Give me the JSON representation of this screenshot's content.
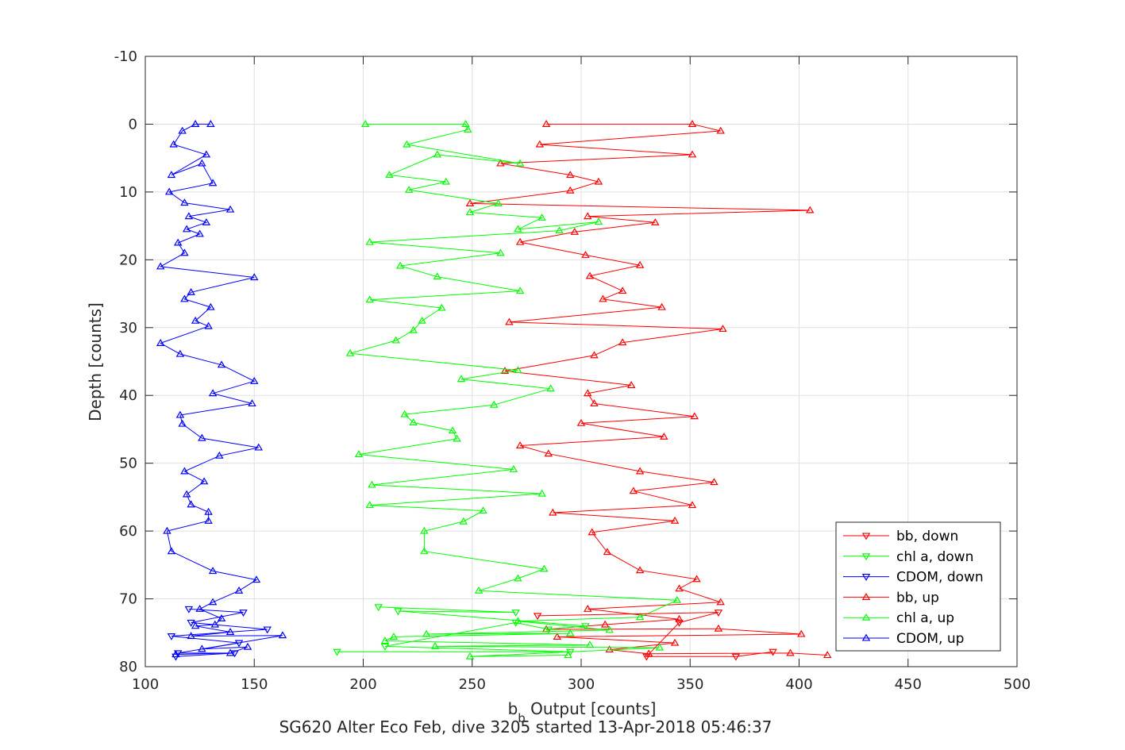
{
  "chart_data": {
    "type": "line",
    "title": "",
    "xlabel_main": "b",
    "xlabel_sub": "b",
    "xlabel_rest": " Output [counts]",
    "ylabel": "Depth [counts]",
    "caption": "SG620 Alter Eco Feb, dive 3205 started 13-Apr-2018 05:46:37",
    "xlim": [
      100,
      500
    ],
    "ylim": [
      -10,
      80
    ],
    "y_reversed": true,
    "grid": true,
    "legend_position": "bottom-right",
    "xticks": [
      100,
      150,
      200,
      250,
      300,
      350,
      400,
      450,
      500
    ],
    "yticks": [
      -10,
      0,
      10,
      20,
      30,
      40,
      50,
      60,
      70,
      80
    ],
    "series": [
      {
        "name": "bb, down",
        "color": "#ff0000",
        "marker": "triangle-down",
        "points": [
          [
            280,
            72.5
          ],
          [
            363,
            72
          ],
          [
            345,
            73.5
          ],
          [
            330,
            78.5
          ],
          [
            371,
            78.5
          ],
          [
            388,
            77.8
          ]
        ]
      },
      {
        "name": "chl a, down",
        "color": "#00ff00",
        "marker": "triangle-down",
        "points": [
          [
            207,
            71.2
          ],
          [
            270,
            72
          ],
          [
            216,
            71.8
          ],
          [
            302,
            74
          ],
          [
            285,
            74.5
          ],
          [
            270,
            73.5
          ],
          [
            210,
            77
          ],
          [
            295,
            77.8
          ],
          [
            188,
            77.8
          ]
        ]
      },
      {
        "name": "CDOM, down",
        "color": "#0000ff",
        "marker": "triangle-down",
        "points": [
          [
            120,
            71.5
          ],
          [
            145,
            72
          ],
          [
            121,
            73.5
          ],
          [
            156,
            74.5
          ],
          [
            112,
            75.5
          ],
          [
            143,
            76.5
          ],
          [
            115,
            78
          ],
          [
            141,
            78
          ],
          [
            114,
            78.5
          ]
        ]
      },
      {
        "name": "bb, up",
        "color": "#ff0000",
        "marker": "triangle-up",
        "points": [
          [
            413,
            78.3
          ],
          [
            396,
            78
          ],
          [
            331,
            78.1
          ],
          [
            313,
            77.5
          ],
          [
            343,
            76.5
          ],
          [
            289,
            75.6
          ],
          [
            401,
            75.2
          ],
          [
            363,
            74.4
          ],
          [
            284,
            74.5
          ],
          [
            311,
            73.8
          ],
          [
            345,
            73
          ],
          [
            303,
            71.5
          ],
          [
            364,
            70.5
          ],
          [
            345,
            68.5
          ],
          [
            353,
            67.1
          ],
          [
            327,
            65.8
          ],
          [
            312,
            63.1
          ],
          [
            305,
            60.2
          ],
          [
            343,
            58.5
          ],
          [
            287,
            57.3
          ],
          [
            351,
            56.2
          ],
          [
            324,
            54.1
          ],
          [
            361,
            52.8
          ],
          [
            327,
            51.2
          ],
          [
            285,
            48.6
          ],
          [
            272,
            47.4
          ],
          [
            338,
            46.1
          ],
          [
            300,
            44.1
          ],
          [
            352,
            43.1
          ],
          [
            306,
            41.2
          ],
          [
            303,
            39.7
          ],
          [
            323,
            38.5
          ],
          [
            265,
            36.4
          ],
          [
            306,
            34.1
          ],
          [
            319,
            32.2
          ],
          [
            365,
            30.2
          ],
          [
            267,
            29.2
          ],
          [
            337,
            27
          ],
          [
            310,
            25.8
          ],
          [
            319,
            24.6
          ],
          [
            304,
            22.4
          ],
          [
            327,
            20.8
          ],
          [
            302,
            19.3
          ],
          [
            272,
            17.4
          ],
          [
            297,
            15.9
          ],
          [
            334,
            14.5
          ],
          [
            303,
            13.6
          ],
          [
            405,
            12.7
          ],
          [
            249,
            11.7
          ],
          [
            295,
            9.8
          ],
          [
            308,
            8.5
          ],
          [
            295,
            7.5
          ],
          [
            263,
            5.8
          ],
          [
            351,
            4.5
          ],
          [
            281,
            3
          ],
          [
            364,
            1
          ],
          [
            351,
            0
          ],
          [
            284,
            0
          ]
        ]
      },
      {
        "name": "chl a, up",
        "color": "#00ff00",
        "marker": "triangle-up",
        "points": [
          [
            294,
            78.3
          ],
          [
            249,
            78.5
          ],
          [
            336,
            77.2
          ],
          [
            233,
            77
          ],
          [
            304,
            76.8
          ],
          [
            210,
            76.2
          ],
          [
            214,
            75.6
          ],
          [
            295,
            75.1
          ],
          [
            229,
            75.2
          ],
          [
            313,
            74.6
          ],
          [
            271,
            73.3
          ],
          [
            327,
            72.7
          ],
          [
            344,
            70.2
          ],
          [
            253,
            68.8
          ],
          [
            271,
            67
          ],
          [
            283,
            65.6
          ],
          [
            228,
            63
          ],
          [
            228,
            60
          ],
          [
            246,
            58.6
          ],
          [
            255,
            57
          ],
          [
            203,
            56.2
          ],
          [
            282,
            54.5
          ],
          [
            204,
            53.2
          ],
          [
            269,
            50.9
          ],
          [
            198,
            48.7
          ],
          [
            243,
            46.4
          ],
          [
            241,
            45.2
          ],
          [
            223,
            44
          ],
          [
            219,
            42.8
          ],
          [
            260,
            41.4
          ],
          [
            286,
            39
          ],
          [
            245,
            37.6
          ],
          [
            271,
            36.3
          ],
          [
            194,
            33.8
          ],
          [
            215,
            31.9
          ],
          [
            223,
            30.4
          ],
          [
            227,
            29
          ],
          [
            236,
            27.1
          ],
          [
            203,
            25.9
          ],
          [
            272,
            24.6
          ],
          [
            234,
            22.5
          ],
          [
            217,
            20.9
          ],
          [
            263,
            19
          ],
          [
            203,
            17.4
          ],
          [
            290,
            15.7
          ],
          [
            308,
            14.4
          ],
          [
            271,
            15.5
          ],
          [
            282,
            13.8
          ],
          [
            249,
            13
          ],
          [
            262,
            11.7
          ],
          [
            221,
            9.7
          ],
          [
            238,
            8.5
          ],
          [
            212,
            7.5
          ],
          [
            234,
            4.5
          ],
          [
            272,
            5.8
          ],
          [
            220,
            3
          ],
          [
            248,
            0.8
          ],
          [
            247,
            0
          ],
          [
            201,
            0
          ]
        ]
      },
      {
        "name": "CDOM, up",
        "color": "#0000ff",
        "marker": "triangle-up",
        "points": [
          [
            114,
            78.2
          ],
          [
            139,
            78
          ],
          [
            147,
            77.1
          ],
          [
            126,
            77.4
          ],
          [
            163,
            75.4
          ],
          [
            121,
            75.5
          ],
          [
            139,
            74.9
          ],
          [
            123,
            74
          ],
          [
            132,
            73.8
          ],
          [
            135,
            72.9
          ],
          [
            125,
            71.5
          ],
          [
            131,
            70.5
          ],
          [
            143,
            68.8
          ],
          [
            151,
            67.2
          ],
          [
            131,
            65.9
          ],
          [
            112,
            63
          ],
          [
            110,
            60
          ],
          [
            129,
            58.5
          ],
          [
            129,
            57.2
          ],
          [
            121,
            56.1
          ],
          [
            119,
            54.6
          ],
          [
            127,
            52.7
          ],
          [
            118,
            51.2
          ],
          [
            134,
            48.9
          ],
          [
            152,
            47.7
          ],
          [
            126,
            46.3
          ],
          [
            117,
            44.2
          ],
          [
            116,
            42.9
          ],
          [
            149,
            41.2
          ],
          [
            131,
            39.7
          ],
          [
            150,
            37.9
          ],
          [
            135,
            35.5
          ],
          [
            116,
            33.9
          ],
          [
            107,
            32.3
          ],
          [
            129,
            29.8
          ],
          [
            123,
            29
          ],
          [
            130,
            27
          ],
          [
            118,
            25.8
          ],
          [
            121,
            24.8
          ],
          [
            150,
            22.6
          ],
          [
            107,
            21
          ],
          [
            118,
            19
          ],
          [
            115,
            17.5
          ],
          [
            125,
            16.2
          ],
          [
            119,
            15.5
          ],
          [
            128,
            14.5
          ],
          [
            120,
            13.6
          ],
          [
            139,
            12.6
          ],
          [
            118,
            11.6
          ],
          [
            111,
            10
          ],
          [
            131,
            8.7
          ],
          [
            126,
            5.8
          ],
          [
            112,
            7.5
          ],
          [
            128,
            4.5
          ],
          [
            113,
            3
          ],
          [
            117,
            1
          ],
          [
            123,
            0
          ],
          [
            130,
            0
          ]
        ]
      }
    ]
  }
}
